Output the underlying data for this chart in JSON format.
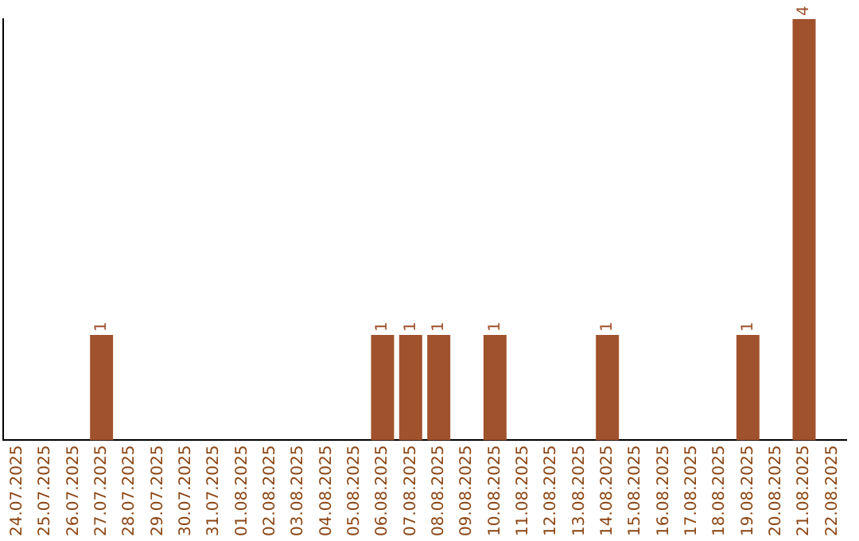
{
  "chart_data": {
    "type": "bar",
    "categories": [
      "24.07.2025",
      "25.07.2025",
      "26.07.2025",
      "27.07.2025",
      "28.07.2025",
      "29.07.2025",
      "30.07.2025",
      "31.07.2025",
      "01.08.2025",
      "02.08.2025",
      "03.08.2025",
      "04.08.2025",
      "05.08.2025",
      "06.08.2025",
      "07.08.2025",
      "08.08.2025",
      "09.08.2025",
      "10.08.2025",
      "11.08.2025",
      "12.08.2025",
      "13.08.2025",
      "14.08.2025",
      "15.08.2025",
      "16.08.2025",
      "17.08.2025",
      "18.08.2025",
      "19.08.2025",
      "20.08.2025",
      "21.08.2025",
      "22.08.2025"
    ],
    "values": [
      0,
      0,
      0,
      1,
      0,
      0,
      0,
      0,
      0,
      0,
      0,
      0,
      0,
      1,
      1,
      1,
      0,
      1,
      0,
      0,
      0,
      1,
      0,
      0,
      0,
      0,
      1,
      0,
      4,
      0
    ],
    "value_labels": [
      null,
      null,
      null,
      "1",
      null,
      null,
      null,
      null,
      null,
      null,
      null,
      null,
      null,
      "1",
      "1",
      "1",
      null,
      "1",
      null,
      null,
      null,
      "1",
      null,
      null,
      null,
      null,
      "1",
      null,
      "4",
      null
    ],
    "color": "#a0522d"
  }
}
